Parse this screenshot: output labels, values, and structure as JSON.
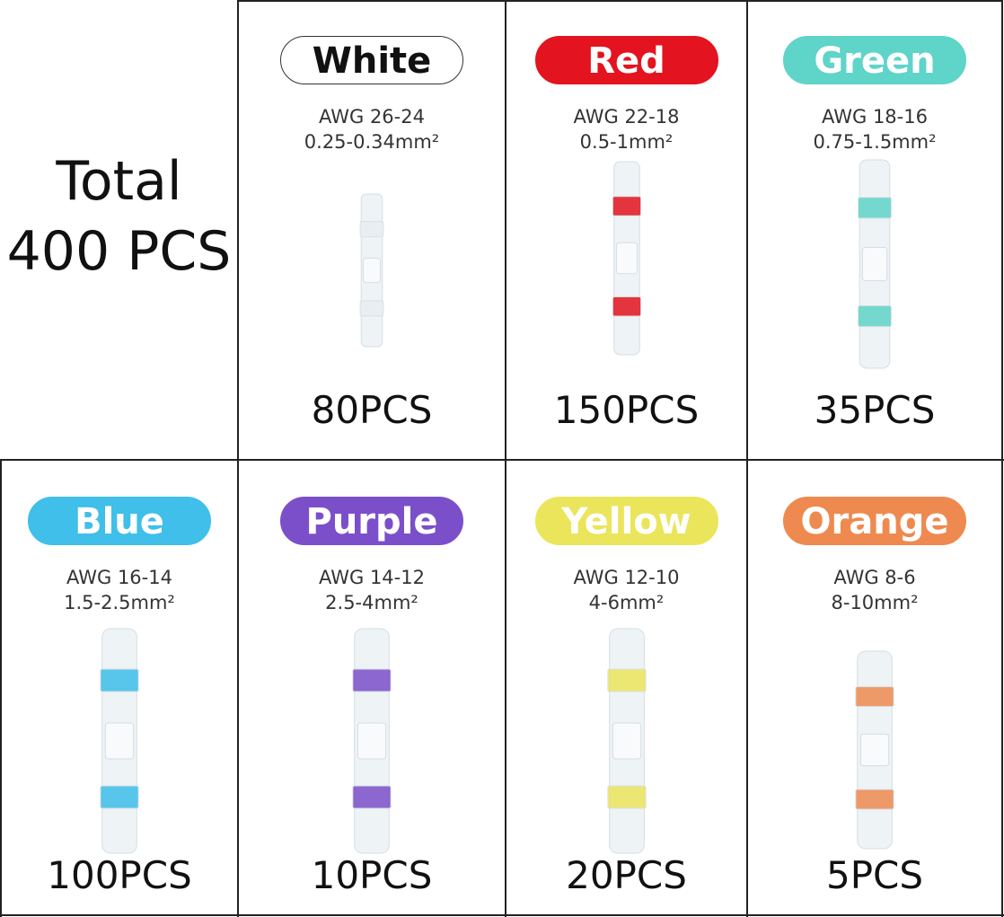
{
  "header": {
    "line1": "Total",
    "line2": "400 PCS"
  },
  "items": [
    {
      "label": "White",
      "color": "#ffffff",
      "text_color": "#111111",
      "awg": "AWG 26-24",
      "area": "0.25-0.34mm²",
      "count": "80PCS"
    },
    {
      "label": "Red",
      "color": "#e3141f",
      "text_color": "#ffffff",
      "awg": "AWG 22-18",
      "area": "0.5-1mm²",
      "count": "150PCS"
    },
    {
      "label": "Green",
      "color": "#5fd4c9",
      "text_color": "#ffffff",
      "awg": "AWG 18-16",
      "area": "0.75-1.5mm²",
      "count": "35PCS"
    },
    {
      "label": "Blue",
      "color": "#3fbfe9",
      "text_color": "#ffffff",
      "awg": "AWG 16-14",
      "area": "1.5-2.5mm²",
      "count": "100PCS"
    },
    {
      "label": "Purple",
      "color": "#7c4fca",
      "text_color": "#ffffff",
      "awg": "AWG 14-12",
      "area": "2.5-4mm²",
      "count": "10PCS"
    },
    {
      "label": "Yellow",
      "color": "#ebe55b",
      "text_color": "#ffffff",
      "awg": "AWG 12-10",
      "area": "4-6mm²",
      "count": "20PCS"
    },
    {
      "label": "Orange",
      "color": "#ee8a50",
      "text_color": "#ffffff",
      "awg": "AWG 8-6",
      "area": "8-10mm²",
      "count": "5PCS"
    }
  ]
}
